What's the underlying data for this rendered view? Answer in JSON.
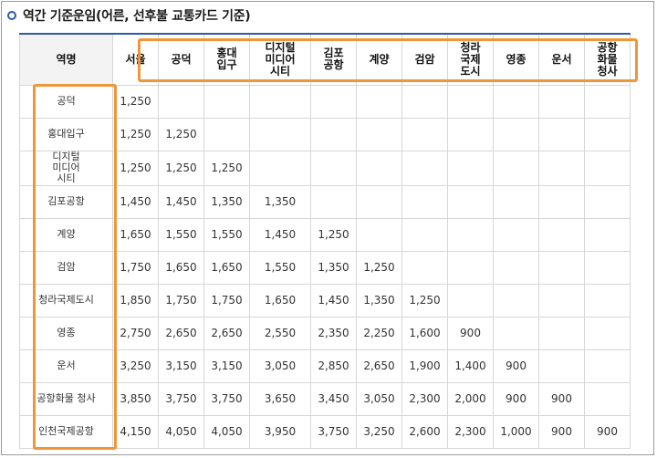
{
  "title": "역간 기준운임(어른, 선후불 교통카드 기준)",
  "table": {
    "corner_label": "역명",
    "columns": [
      "서울",
      "공덕",
      "홍대\n입구",
      "디지털\n미디어\n시티",
      "김포\n공항",
      "계양",
      "검암",
      "청라\n국제\n도시",
      "영종",
      "운서",
      "공항\n화물\n청사"
    ],
    "rows": [
      {
        "label": "공덕",
        "values": [
          "1,250",
          "",
          "",
          "",
          "",
          "",
          "",
          "",
          "",
          "",
          ""
        ]
      },
      {
        "label": "홍대입구",
        "values": [
          "1,250",
          "1,250",
          "",
          "",
          "",
          "",
          "",
          "",
          "",
          "",
          ""
        ]
      },
      {
        "label": "디지털\n미디어\n시티",
        "values": [
          "1,250",
          "1,250",
          "1,250",
          "",
          "",
          "",
          "",
          "",
          "",
          "",
          ""
        ]
      },
      {
        "label": "김포공항",
        "values": [
          "1,450",
          "1,450",
          "1,350",
          "1,350",
          "",
          "",
          "",
          "",
          "",
          "",
          ""
        ]
      },
      {
        "label": "계양",
        "values": [
          "1,650",
          "1,550",
          "1,550",
          "1,450",
          "1,250",
          "",
          "",
          "",
          "",
          "",
          ""
        ]
      },
      {
        "label": "검암",
        "values": [
          "1,750",
          "1,650",
          "1,650",
          "1,550",
          "1,350",
          "1,250",
          "",
          "",
          "",
          "",
          ""
        ]
      },
      {
        "label": "청라국제도시",
        "values": [
          "1,850",
          "1,750",
          "1,750",
          "1,650",
          "1,450",
          "1,350",
          "1,250",
          "",
          "",
          "",
          ""
        ]
      },
      {
        "label": "영종",
        "values": [
          "2,750",
          "2,650",
          "2,650",
          "2,550",
          "2,350",
          "2,250",
          "1,600",
          "900",
          "",
          "",
          ""
        ]
      },
      {
        "label": "운서",
        "values": [
          "3,250",
          "3,150",
          "3,150",
          "3,050",
          "2,850",
          "2,650",
          "1,900",
          "1,400",
          "900",
          "",
          ""
        ]
      },
      {
        "label": "공항화물 청사",
        "values": [
          "3,850",
          "3,750",
          "3,750",
          "3,650",
          "3,450",
          "3,050",
          "2,300",
          "2,000",
          "900",
          "900",
          ""
        ]
      },
      {
        "label": "인천국제공항",
        "values": [
          "4,150",
          "4,050",
          "4,050",
          "3,950",
          "3,750",
          "3,250",
          "2,600",
          "2,300",
          "1,000",
          "900",
          "900"
        ]
      }
    ]
  },
  "colors": {
    "accent_blue": "#2a5caa",
    "highlight_orange": "#f0963a",
    "grid": "#d6d6d6"
  },
  "icons": {
    "title_marker": "circle-bullet-icon"
  }
}
